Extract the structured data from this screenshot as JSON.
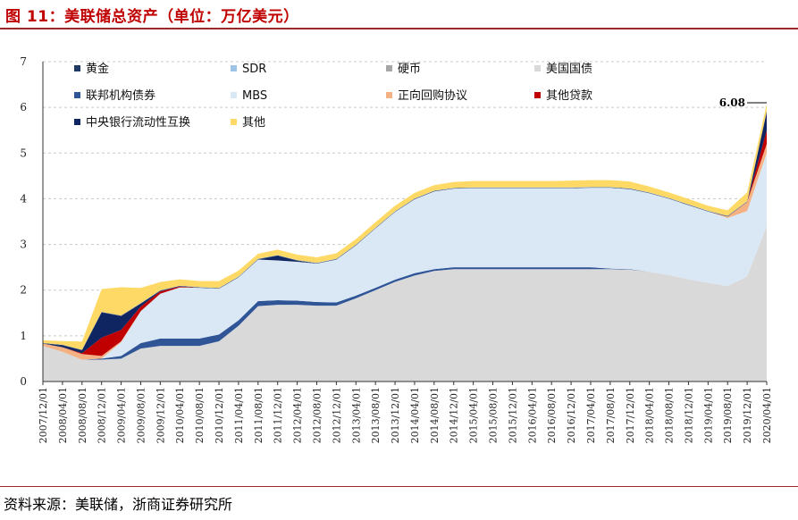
{
  "header": {
    "title": "图 11：美联储总资产（单位：万亿美元）"
  },
  "footer": {
    "source": "资料来源：美联储，浙商证券研究所"
  },
  "colors": {
    "gold": "#1f3864",
    "sdr": "#9dc3e6",
    "coin": "#a6a6a6",
    "treasury": "#d9d9d9",
    "agency": "#2f5597",
    "mbs": "#dae8f5",
    "repo": "#f4b183",
    "other_loans": "#c00000",
    "cb_swaps": "#0f2561",
    "other": "#ffd966"
  },
  "chart_data": {
    "type": "area",
    "title": "",
    "xlabel": "",
    "ylabel": "",
    "ylim": [
      0,
      7
    ],
    "yticks": [
      "0",
      "1",
      "2",
      "3",
      "4",
      "5",
      "6",
      "7"
    ],
    "grid": true,
    "legend_position": "top-left",
    "stacked": true,
    "x": [
      "2007/12/01",
      "2008/04/01",
      "2008/08/01",
      "2008/12/01",
      "2009/04/01",
      "2009/08/01",
      "2009/12/01",
      "2010/04/01",
      "2010/08/01",
      "2010/12/01",
      "2011/04/01",
      "2011/08/01",
      "2011/12/01",
      "2012/04/01",
      "2012/08/01",
      "2012/12/01",
      "2013/04/01",
      "2013/08/01",
      "2013/12/01",
      "2014/04/01",
      "2014/08/01",
      "2014/12/01",
      "2015/04/01",
      "2015/08/01",
      "2015/12/01",
      "2016/04/01",
      "2016/08/01",
      "2016/12/01",
      "2017/04/01",
      "2017/08/01",
      "2017/12/01",
      "2018/04/01",
      "2018/08/01",
      "2018/12/01",
      "2019/04/01",
      "2019/08/01",
      "2019/12/01",
      "2020/04/01"
    ],
    "series": [
      {
        "name": "美国国债",
        "color": "#d9d9d9",
        "values": [
          0.78,
          0.65,
          0.48,
          0.48,
          0.5,
          0.72,
          0.78,
          0.78,
          0.78,
          0.88,
          1.22,
          1.65,
          1.68,
          1.68,
          1.66,
          1.66,
          1.82,
          2.0,
          2.18,
          2.32,
          2.42,
          2.46,
          2.46,
          2.46,
          2.46,
          2.46,
          2.46,
          2.46,
          2.46,
          2.46,
          2.45,
          2.4,
          2.33,
          2.24,
          2.16,
          2.09,
          2.3,
          3.4
        ]
      },
      {
        "name": "联邦机构债券",
        "color": "#2f5597",
        "values": [
          0.0,
          0.0,
          0.0,
          0.02,
          0.06,
          0.12,
          0.16,
          0.16,
          0.16,
          0.15,
          0.12,
          0.11,
          0.1,
          0.09,
          0.08,
          0.07,
          0.06,
          0.05,
          0.05,
          0.05,
          0.04,
          0.04,
          0.04,
          0.04,
          0.04,
          0.04,
          0.04,
          0.04,
          0.04,
          0.01,
          0.01,
          0.0,
          0.0,
          0.0,
          0.0,
          0.0,
          0.0,
          0.0
        ]
      },
      {
        "name": "MBS",
        "color": "#dae8f5",
        "values": [
          0.0,
          0.0,
          0.0,
          0.0,
          0.3,
          0.7,
          0.98,
          1.12,
          1.11,
          1.0,
          0.94,
          0.91,
          0.87,
          0.85,
          0.84,
          0.94,
          1.1,
          1.3,
          1.48,
          1.62,
          1.7,
          1.72,
          1.73,
          1.73,
          1.73,
          1.73,
          1.73,
          1.73,
          1.74,
          1.77,
          1.75,
          1.72,
          1.67,
          1.62,
          1.56,
          1.49,
          1.43,
          1.6
        ]
      },
      {
        "name": "正向回购协议",
        "color": "#f4b183",
        "values": [
          0.05,
          0.1,
          0.12,
          0.06,
          0.02,
          0.0,
          0.0,
          0.0,
          0.0,
          0.0,
          0.0,
          0.0,
          0.0,
          0.0,
          0.0,
          0.0,
          0.0,
          0.0,
          0.0,
          0.0,
          0.0,
          0.0,
          0.0,
          0.0,
          0.0,
          0.0,
          0.0,
          0.0,
          0.0,
          0.0,
          0.0,
          0.0,
          0.0,
          0.0,
          0.0,
          0.03,
          0.2,
          0.2
        ]
      },
      {
        "name": "其他贷款",
        "color": "#c00000",
        "values": [
          0.0,
          0.0,
          0.02,
          0.4,
          0.25,
          0.1,
          0.05,
          0.02,
          0.0,
          0.0,
          0.0,
          0.0,
          0.0,
          0.0,
          0.0,
          0.0,
          0.0,
          0.0,
          0.0,
          0.0,
          0.0,
          0.0,
          0.0,
          0.0,
          0.0,
          0.0,
          0.0,
          0.0,
          0.0,
          0.0,
          0.0,
          0.0,
          0.0,
          0.0,
          0.0,
          0.0,
          0.0,
          0.3
        ]
      },
      {
        "name": "中央银行流动性互换",
        "color": "#0f2561",
        "values": [
          0.0,
          0.04,
          0.06,
          0.55,
          0.3,
          0.06,
          0.01,
          0.0,
          0.0,
          0.0,
          0.0,
          0.0,
          0.1,
          0.02,
          0.0,
          0.0,
          0.0,
          0.0,
          0.0,
          0.0,
          0.0,
          0.0,
          0.0,
          0.0,
          0.0,
          0.0,
          0.0,
          0.0,
          0.0,
          0.0,
          0.0,
          0.0,
          0.0,
          0.0,
          0.0,
          0.0,
          0.0,
          0.4
        ]
      },
      {
        "name": "黄金",
        "color": "#1f3864",
        "values": [
          0.011,
          0.011,
          0.011,
          0.011,
          0.011,
          0.011,
          0.011,
          0.011,
          0.011,
          0.011,
          0.011,
          0.011,
          0.011,
          0.011,
          0.011,
          0.011,
          0.011,
          0.011,
          0.011,
          0.011,
          0.011,
          0.011,
          0.011,
          0.011,
          0.011,
          0.011,
          0.011,
          0.011,
          0.011,
          0.011,
          0.011,
          0.011,
          0.011,
          0.011,
          0.011,
          0.011,
          0.011,
          0.011
        ]
      },
      {
        "name": "SDR",
        "color": "#9dc3e6",
        "values": [
          0.002,
          0.002,
          0.002,
          0.002,
          0.002,
          0.005,
          0.005,
          0.005,
          0.005,
          0.005,
          0.005,
          0.005,
          0.005,
          0.005,
          0.005,
          0.005,
          0.005,
          0.005,
          0.005,
          0.005,
          0.005,
          0.005,
          0.005,
          0.005,
          0.005,
          0.005,
          0.005,
          0.005,
          0.005,
          0.005,
          0.005,
          0.005,
          0.005,
          0.005,
          0.005,
          0.005,
          0.005,
          0.005
        ]
      },
      {
        "name": "硬币",
        "color": "#a6a6a6",
        "values": [
          0.001,
          0.001,
          0.001,
          0.001,
          0.001,
          0.001,
          0.001,
          0.001,
          0.001,
          0.001,
          0.001,
          0.001,
          0.001,
          0.001,
          0.001,
          0.001,
          0.001,
          0.001,
          0.001,
          0.001,
          0.001,
          0.001,
          0.001,
          0.001,
          0.001,
          0.001,
          0.001,
          0.001,
          0.001,
          0.001,
          0.001,
          0.001,
          0.001,
          0.001,
          0.001,
          0.001,
          0.001,
          0.001
        ]
      },
      {
        "name": "其他",
        "color": "#ffd966",
        "values": [
          0.06,
          0.08,
          0.18,
          0.5,
          0.62,
          0.33,
          0.18,
          0.14,
          0.13,
          0.15,
          0.13,
          0.11,
          0.12,
          0.12,
          0.12,
          0.12,
          0.12,
          0.12,
          0.12,
          0.12,
          0.12,
          0.13,
          0.14,
          0.14,
          0.14,
          0.14,
          0.14,
          0.15,
          0.15,
          0.15,
          0.15,
          0.13,
          0.12,
          0.12,
          0.11,
          0.12,
          0.19,
          0.16
        ]
      }
    ],
    "legend": [
      {
        "label": "黄金",
        "color": "#1f3864"
      },
      {
        "label": "SDR",
        "color": "#9dc3e6"
      },
      {
        "label": "硬币",
        "color": "#a6a6a6"
      },
      {
        "label": "美国国债",
        "color": "#d9d9d9"
      },
      {
        "label": "联邦机构债券",
        "color": "#2f5597"
      },
      {
        "label": "MBS",
        "color": "#dae8f5"
      },
      {
        "label": "正向回购协议",
        "color": "#f4b183"
      },
      {
        "label": "其他贷款",
        "color": "#c00000"
      },
      {
        "label": "中央银行流动性互换",
        "color": "#0f2561"
      },
      {
        "label": "其他",
        "color": "#ffd966"
      }
    ],
    "annotations": [
      {
        "text": "6.08",
        "x": "2020/04/01",
        "y": 6.08
      }
    ]
  }
}
